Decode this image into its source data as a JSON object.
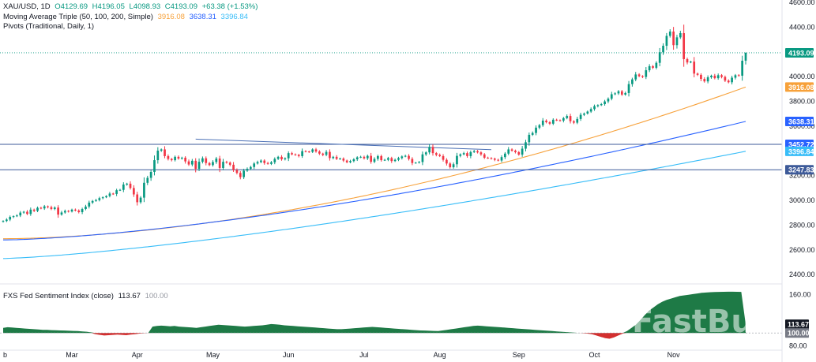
{
  "header": {
    "symbol": "XAU/USD, 1D",
    "open": "O4129.69",
    "high": "H4196.05",
    "low": "L4098.93",
    "close": "C4193.09",
    "change": "+63.38 (+1.53%)",
    "ma_label": "Moving Average Triple (50, 100, 200, Simple)",
    "ma50_value": "3916.08",
    "ma100_value": "3638.31",
    "ma200_value": "3396.84",
    "pivots_label": "Pivots (Traditional, Daily, 1)"
  },
  "sub_header": {
    "label": "FXS Fed Sentiment Index (close)",
    "value": "113.67",
    "baseline": "100.00"
  },
  "watermark": "FastBull",
  "colors": {
    "up": "#089981",
    "down": "#f23645",
    "ma50": "#f7a13a",
    "ma100": "#2962ff",
    "ma200": "#38bdf8",
    "pivot": "#3d5a99",
    "last_price": "#089981",
    "sentiment_pos": "#1e7a46",
    "sentiment_neg": "#d32f2f"
  },
  "chart_data": [
    {
      "type": "candlestick",
      "title": "XAU/USD, 1D",
      "ylim": [
        2350,
        4620
      ],
      "y_ticks": [
        "4600.00",
        "4400.00",
        "4000.00",
        "3800.00",
        "3600.00",
        "3200.00",
        "3000.00",
        "2800.00",
        "2600.00",
        "2400.00"
      ],
      "y_tick_values": [
        4600,
        4400,
        4000,
        3800,
        3600,
        3200,
        3000,
        2800,
        2600,
        2400
      ],
      "x_ticks": [
        "b",
        "Mar",
        "Apr",
        "May",
        "Jun",
        "Jul",
        "Aug",
        "Sep",
        "Oct",
        "Nov"
      ],
      "x_tick_bar_index": [
        0,
        20,
        39,
        61,
        83,
        105,
        127,
        150,
        172,
        195
      ],
      "closes": [
        2833,
        2845,
        2866,
        2872,
        2878,
        2901,
        2908,
        2890,
        2925,
        2915,
        2940,
        2935,
        2952,
        2945,
        2930,
        2942,
        2885,
        2902,
        2915,
        2910,
        2925,
        2918,
        2905,
        2930,
        2950,
        2982,
        2995,
        3002,
        3018,
        3025,
        3035,
        3055,
        3052,
        3082,
        3085,
        3128,
        3135,
        3100,
        3048,
        2985,
        3022,
        3142,
        3182,
        3230,
        3325,
        3402,
        3412,
        3358,
        3335,
        3325,
        3352,
        3338,
        3345,
        3315,
        3290,
        3320,
        3255,
        3312,
        3340,
        3302,
        3285,
        3310,
        3338,
        3262,
        3312,
        3305,
        3288,
        3245,
        3222,
        3188,
        3240,
        3255,
        3270,
        3298,
        3310,
        3322,
        3302,
        3295,
        3308,
        3335,
        3352,
        3332,
        3340,
        3382,
        3372,
        3368,
        3358,
        3398,
        3395,
        3392,
        3412,
        3395,
        3378,
        3368,
        3392,
        3342,
        3352,
        3335,
        3338,
        3322,
        3308,
        3318,
        3332,
        3348,
        3352,
        3340,
        3360,
        3312,
        3335,
        3358,
        3325,
        3328,
        3342,
        3318,
        3328,
        3342,
        3355,
        3360,
        3335,
        3302,
        3305,
        3310,
        3372,
        3388,
        3432,
        3382,
        3368,
        3358,
        3328,
        3298,
        3268,
        3292,
        3360,
        3372,
        3382,
        3358,
        3390,
        3398,
        3388,
        3372,
        3345,
        3342,
        3338,
        3328,
        3322,
        3350,
        3378,
        3412,
        3402,
        3390,
        3370,
        3418,
        3470,
        3530,
        3545,
        3588,
        3608,
        3645,
        3632,
        3620,
        3652,
        3648,
        3645,
        3665,
        3682,
        3640,
        3628,
        3658,
        3692,
        3702,
        3718,
        3738,
        3762,
        3770,
        3778,
        3800,
        3822,
        3858,
        3865,
        3882,
        3855,
        3868,
        3940,
        3978,
        4018,
        4005,
        3998,
        4052,
        4085,
        4072,
        4112,
        4198,
        4250,
        4330,
        4365,
        4255,
        4318,
        4352,
        4142,
        4115,
        4122,
        4025,
        4015,
        3982,
        3962,
        3995,
        4008,
        3988,
        4012,
        3998,
        3968,
        3955,
        3992,
        4012,
        4008,
        4129,
        4193
      ],
      "ohlc_last": {
        "open": 4129.69,
        "high": 4196.05,
        "low": 4098.93,
        "close": 4193.09
      },
      "last_close": 4193.09,
      "series": [
        {
          "name": "MA 50",
          "values_start": 2690,
          "values_end": 3916.08
        },
        {
          "name": "MA 100",
          "values_start": 2680,
          "values_end": 3638.31
        },
        {
          "name": "MA 200",
          "values_start": 2530,
          "values_end": 3396.84
        }
      ],
      "pivot_levels": [
        3452.72,
        3247.83
      ],
      "trendline": {
        "from": {
          "bar": 56,
          "value": 3495
        },
        "to": {
          "bar": 142,
          "value": 3410
        }
      },
      "price_labels": [
        {
          "text": "4193.09",
          "value": 4193.09,
          "color": "#089981"
        },
        {
          "text": "3916.08",
          "value": 3916.08,
          "color": "#f7a13a"
        },
        {
          "text": "3638.31",
          "value": 3638.31,
          "color": "#2962ff"
        },
        {
          "text": "3452.72",
          "value": 3452.72,
          "color": "#2962ff"
        },
        {
          "text": "3396.84",
          "value": 3396.84,
          "color": "#38bdf8"
        },
        {
          "text": "3247.83",
          "value": 3247.83,
          "color": "#3d5a99"
        }
      ]
    },
    {
      "type": "area",
      "title": "FXS Fed Sentiment Index (close)",
      "ylim": [
        78,
        172
      ],
      "baseline": 100,
      "y_ticks": [
        "160.00",
        "80.00"
      ],
      "y_tick_values": [
        160,
        80
      ],
      "last_value": 113.67,
      "value_labels": [
        {
          "text": "113.67",
          "value": 113.67
        },
        {
          "text": "100.00",
          "value": 100
        }
      ],
      "values": [
        108,
        109,
        108.5,
        108,
        107.5,
        107,
        106.5,
        106,
        105.5,
        105,
        104.8,
        104.5,
        104.2,
        104,
        103.8,
        103.5,
        103.2,
        103,
        102.5,
        102,
        101,
        98,
        97,
        96,
        96.5,
        97,
        97.5,
        97,
        96.5,
        97.5,
        98,
        99,
        99.5,
        99.8,
        110,
        111,
        111.5,
        111,
        110.5,
        111,
        110,
        109.5,
        109,
        108.5,
        108,
        109,
        110,
        111,
        112,
        113,
        112.5,
        112,
        111.5,
        111,
        110.5,
        110,
        110.5,
        111,
        111.5,
        112,
        113,
        114,
        113.5,
        113,
        112,
        111.5,
        111,
        110.5,
        110,
        109.5,
        109,
        108.5,
        108,
        107.5,
        107,
        106.5,
        106,
        106,
        106.5,
        107,
        107.5,
        108,
        108.5,
        109,
        109.5,
        109,
        108.5,
        108,
        107.5,
        107,
        106.5,
        106,
        105.5,
        105,
        104.5,
        104,
        103.8,
        103.5,
        103.2,
        103,
        104,
        105,
        106,
        107,
        108,
        109,
        110,
        111,
        111.5,
        111,
        110.5,
        110,
        109.5,
        109,
        108.5,
        108,
        107.5,
        107,
        106.5,
        106,
        105.5,
        105,
        104.5,
        104,
        103.5,
        103,
        102.5,
        102,
        101.5,
        101,
        100.5,
        100,
        99.5,
        99,
        98,
        96,
        94,
        92,
        91,
        93,
        96,
        99,
        103,
        108,
        113,
        120,
        128,
        135,
        140,
        145,
        149,
        152,
        154,
        156,
        158,
        159,
        160,
        161,
        162,
        163,
        163.5,
        164,
        164.3,
        164.5,
        164.6,
        164.7,
        164.7,
        164.6,
        164.5,
        113.67
      ]
    }
  ]
}
